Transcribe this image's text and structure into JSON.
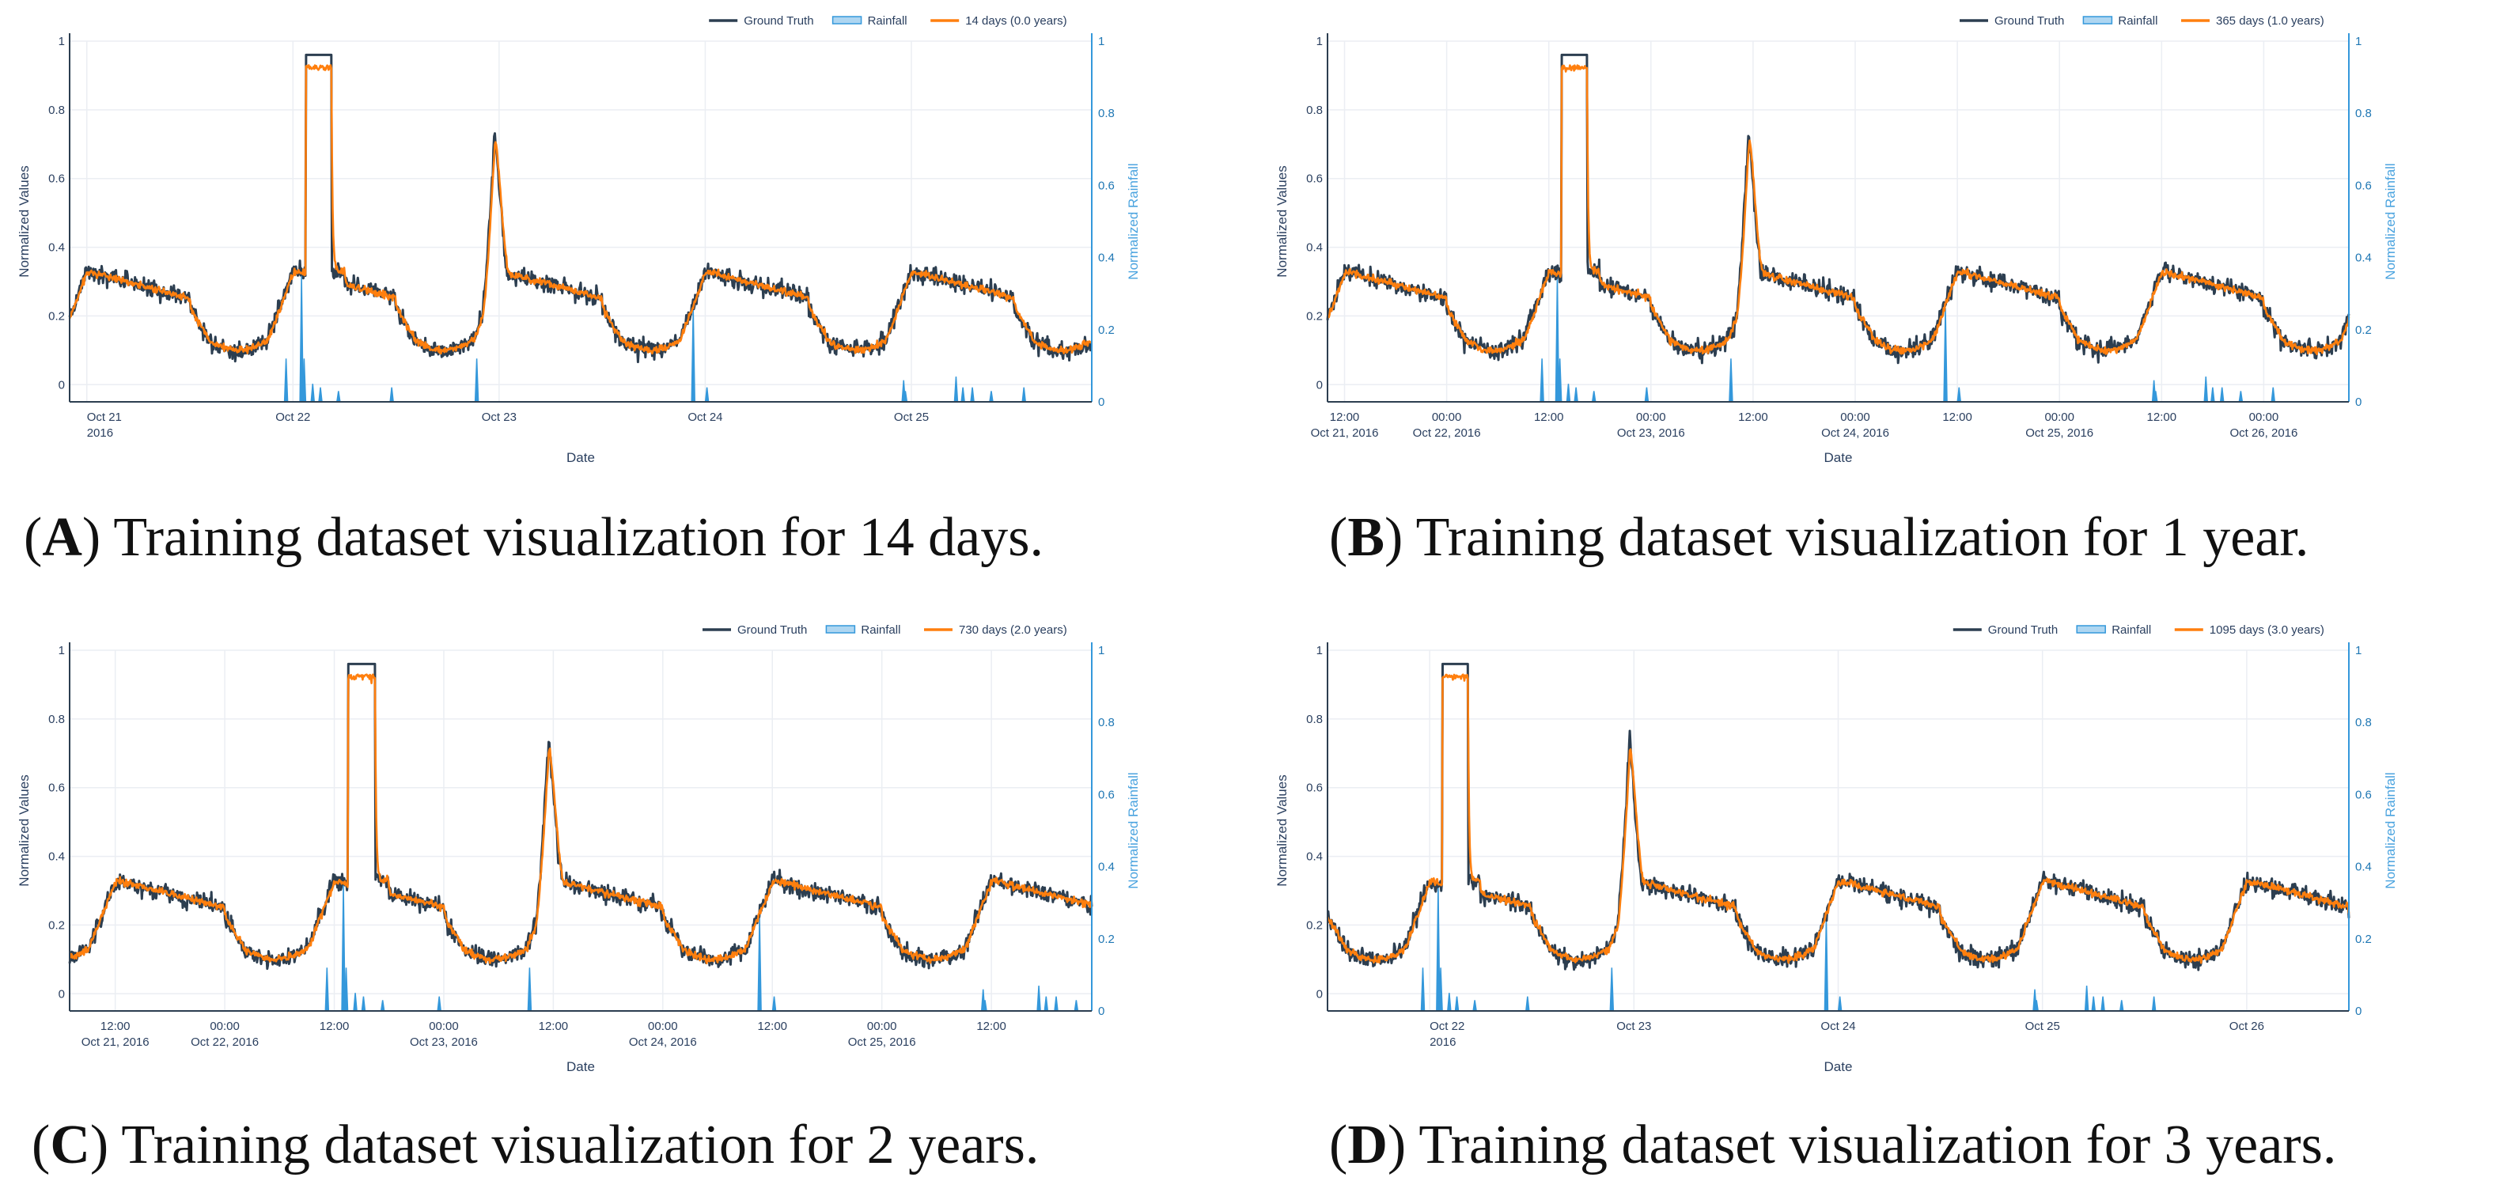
{
  "chart_data": [
    {
      "type": "line",
      "panel_label": "A",
      "caption": "Training dataset visualization for 14 days.",
      "xlabel": "Date",
      "ylabel": "Normalized Values",
      "y2label": "Normalized Rainfall",
      "ylim": [
        -0.05,
        1.0
      ],
      "y2lim": [
        0,
        1.0
      ],
      "yticks": [
        "0",
        "0.2",
        "0.4",
        "0.6",
        "0.8",
        "1"
      ],
      "y2ticks": [
        "0",
        "0.2",
        "0.4",
        "0.6",
        "0.8",
        "1"
      ],
      "x_start_hours": 34,
      "x_end_hours": 153,
      "xticks": [
        {
          "hours": 36,
          "label": "Oct 21",
          "sub": "2016"
        },
        {
          "hours": 60,
          "label": "Oct 22",
          "sub": ""
        },
        {
          "hours": 84,
          "label": "Oct 23",
          "sub": ""
        },
        {
          "hours": 108,
          "label": "Oct 24",
          "sub": ""
        },
        {
          "hours": 132,
          "label": "Oct 25",
          "sub": ""
        }
      ],
      "legend": [
        "Ground Truth",
        "Rainfall",
        "14 days (0.0 years)"
      ],
      "series": [
        {
          "name": "Ground Truth",
          "color": "#2c3e50"
        },
        {
          "name": "14 days (0.0 years)",
          "color": "#ff7f0e"
        },
        {
          "name": "Rainfall",
          "color": "#3498db"
        }
      ]
    },
    {
      "type": "line",
      "panel_label": "B",
      "caption": "Training dataset visualization for 1 year.",
      "xlabel": "Date",
      "ylabel": "Normalized Values",
      "y2label": "Normalized Rainfall",
      "ylim": [
        -0.05,
        1.0
      ],
      "y2lim": [
        0,
        1.0
      ],
      "yticks": [
        "0",
        "0.2",
        "0.4",
        "0.6",
        "0.8",
        "1"
      ],
      "y2ticks": [
        "0",
        "0.2",
        "0.4",
        "0.6",
        "0.8",
        "1"
      ],
      "x_start_hours": 34,
      "x_end_hours": 154,
      "xticks": [
        {
          "hours": 36,
          "label": "12:00",
          "sub": "Oct 21, 2016"
        },
        {
          "hours": 48,
          "label": "00:00",
          "sub": "Oct 22, 2016"
        },
        {
          "hours": 60,
          "label": "12:00",
          "sub": ""
        },
        {
          "hours": 72,
          "label": "00:00",
          "sub": "Oct 23, 2016"
        },
        {
          "hours": 84,
          "label": "12:00",
          "sub": ""
        },
        {
          "hours": 96,
          "label": "00:00",
          "sub": "Oct 24, 2016"
        },
        {
          "hours": 108,
          "label": "12:00",
          "sub": ""
        },
        {
          "hours": 120,
          "label": "00:00",
          "sub": "Oct 25, 2016"
        },
        {
          "hours": 132,
          "label": "12:00",
          "sub": ""
        },
        {
          "hours": 144,
          "label": "00:00",
          "sub": "Oct 26, 2016"
        }
      ],
      "legend": [
        "Ground Truth",
        "Rainfall",
        "365 days (1.0 years)"
      ],
      "series": [
        {
          "name": "Ground Truth",
          "color": "#2c3e50"
        },
        {
          "name": "365 days (1.0 years)",
          "color": "#ff7f0e"
        },
        {
          "name": "Rainfall",
          "color": "#3498db"
        }
      ]
    },
    {
      "type": "line",
      "panel_label": "C",
      "caption": "Training dataset visualization for 2 years.",
      "xlabel": "Date",
      "ylabel": "Normalized Values",
      "y2label": "Normalized Rainfall",
      "ylim": [
        -0.05,
        1.0
      ],
      "y2lim": [
        0,
        1.0
      ],
      "yticks": [
        "0",
        "0.2",
        "0.4",
        "0.6",
        "0.8",
        "1"
      ],
      "y2ticks": [
        "0",
        "0.2",
        "0.4",
        "0.6",
        "0.8",
        "1"
      ],
      "x_start_hours": 31,
      "x_end_hours": 143,
      "xticks": [
        {
          "hours": 36,
          "label": "12:00",
          "sub": "Oct 21, 2016"
        },
        {
          "hours": 48,
          "label": "00:00",
          "sub": "Oct 22, 2016"
        },
        {
          "hours": 60,
          "label": "12:00",
          "sub": ""
        },
        {
          "hours": 72,
          "label": "00:00",
          "sub": "Oct 23, 2016"
        },
        {
          "hours": 84,
          "label": "12:00",
          "sub": ""
        },
        {
          "hours": 96,
          "label": "00:00",
          "sub": "Oct 24, 2016"
        },
        {
          "hours": 108,
          "label": "12:00",
          "sub": ""
        },
        {
          "hours": 120,
          "label": "00:00",
          "sub": "Oct 25, 2016"
        },
        {
          "hours": 132,
          "label": "12:00",
          "sub": ""
        }
      ],
      "legend": [
        "Ground Truth",
        "Rainfall",
        "730 days (2.0 years)"
      ],
      "series": [
        {
          "name": "Ground Truth",
          "color": "#2c3e50"
        },
        {
          "name": "730 days (2.0 years)",
          "color": "#ff7f0e"
        },
        {
          "name": "Rainfall",
          "color": "#3498db"
        }
      ]
    },
    {
      "type": "line",
      "panel_label": "D",
      "caption": "Training dataset visualization for 3 years.",
      "xlabel": "Date",
      "ylabel": "Normalized Values",
      "y2label": "Normalized Rainfall",
      "ylim": [
        -0.05,
        1.0
      ],
      "y2lim": [
        0,
        1.0
      ],
      "yticks": [
        "0",
        "0.2",
        "0.4",
        "0.6",
        "0.8",
        "1"
      ],
      "y2ticks": [
        "0",
        "0.2",
        "0.4",
        "0.6",
        "0.8",
        "1"
      ],
      "x_start_hours": 48,
      "x_end_hours": 168,
      "xticks": [
        {
          "hours": 60,
          "label": "Oct 22",
          "sub": "2016"
        },
        {
          "hours": 84,
          "label": "Oct 23",
          "sub": ""
        },
        {
          "hours": 108,
          "label": "Oct 24",
          "sub": ""
        },
        {
          "hours": 132,
          "label": "Oct 25",
          "sub": ""
        },
        {
          "hours": 156,
          "label": "Oct 26",
          "sub": ""
        }
      ],
      "legend": [
        "Ground Truth",
        "Rainfall",
        "1095 days (3.0 years)"
      ],
      "series": [
        {
          "name": "Ground Truth",
          "color": "#2c3e50"
        },
        {
          "name": "1095 days (3.0 years)",
          "color": "#ff7f0e"
        },
        {
          "name": "Rainfall",
          "color": "#3498db"
        }
      ]
    }
  ]
}
